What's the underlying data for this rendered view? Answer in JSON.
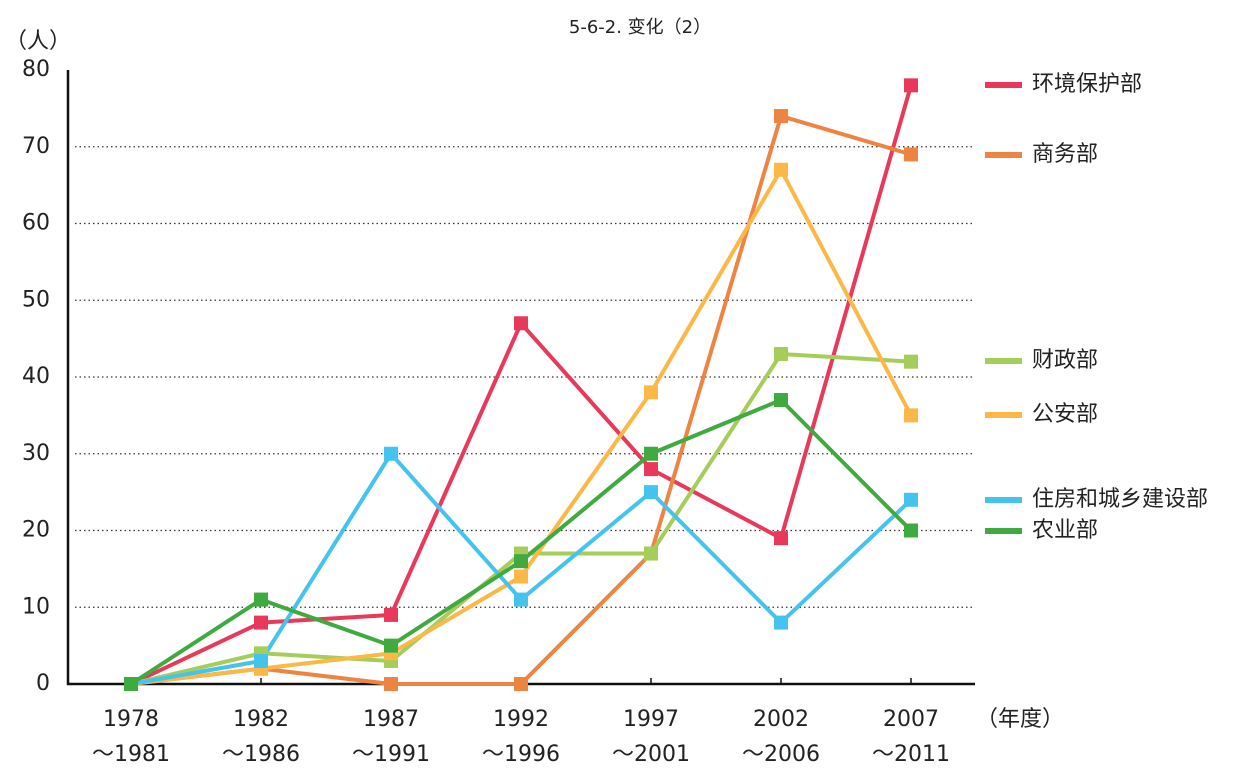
{
  "chart_data": {
    "type": "line",
    "title": "5-6-2. 变化（2）",
    "y_label": "（人）",
    "x_label": "（年度）",
    "categories": [
      [
        "1978",
        "～1981"
      ],
      [
        "1982",
        "～1986"
      ],
      [
        "1987",
        "～1991"
      ],
      [
        "1992",
        "～1996"
      ],
      [
        "1997",
        "～2001"
      ],
      [
        "2002",
        "～2006"
      ],
      [
        "2007",
        "～2011"
      ]
    ],
    "series": [
      {
        "name": "环境保护部",
        "color": "#e8395a",
        "values": [
          0,
          8,
          9,
          47,
          28,
          19,
          78
        ]
      },
      {
        "name": "商务部",
        "color": "#ee8442",
        "values": [
          0,
          2,
          0,
          0,
          17,
          74,
          69
        ]
      },
      {
        "name": "财政部",
        "color": "#a5cd5a",
        "values": [
          0,
          4,
          3,
          17,
          17,
          43,
          42
        ]
      },
      {
        "name": "公安部",
        "color": "#fbb847",
        "values": [
          0,
          2,
          4,
          14,
          38,
          67,
          35
        ]
      },
      {
        "name": "住房和城乡建设部",
        "color": "#45c3ef",
        "values": [
          0,
          3,
          30,
          11,
          25,
          8,
          24
        ]
      },
      {
        "name": "农业部",
        "color": "#3faa3f",
        "values": [
          0,
          11,
          5,
          16,
          30,
          37,
          20
        ]
      }
    ],
    "ylim": [
      0,
      80
    ],
    "yticks": [
      0,
      10,
      20,
      30,
      40,
      50,
      60,
      70,
      80
    ],
    "grid": true
  }
}
